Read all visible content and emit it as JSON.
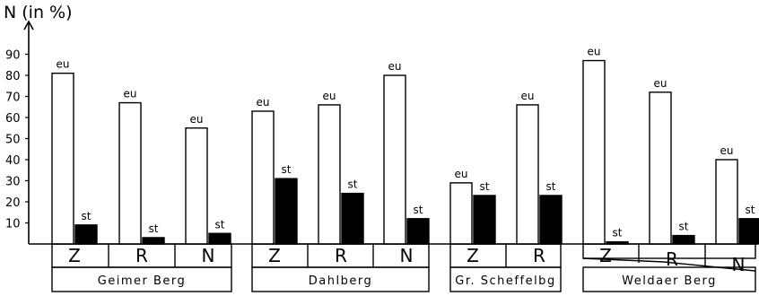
{
  "chart_data": {
    "type": "bar",
    "ylabel": "N (in %)",
    "ylim": [
      0,
      95
    ],
    "yticks": [
      10,
      20,
      30,
      40,
      50,
      60,
      70,
      80,
      90
    ],
    "series": [
      {
        "name": "eu",
        "fill": "#ffffff"
      },
      {
        "name": "st",
        "fill": "#000000"
      }
    ],
    "groups": [
      {
        "name": "Geimer Berg",
        "categories": [
          {
            "label": "Z",
            "eu": 81,
            "st": 9
          },
          {
            "label": "R",
            "eu": 67,
            "st": 3
          },
          {
            "label": "N",
            "eu": 55,
            "st": 5
          }
        ]
      },
      {
        "name": "Dahlberg",
        "categories": [
          {
            "label": "Z",
            "eu": 63,
            "st": 31
          },
          {
            "label": "R",
            "eu": 66,
            "st": 24
          },
          {
            "label": "N",
            "eu": 80,
            "st": 12
          }
        ]
      },
      {
        "name": "Gr. Scheffelbg",
        "categories": [
          {
            "label": "Z",
            "eu": 29,
            "st": 23
          },
          {
            "label": "R",
            "eu": 66,
            "st": 23
          }
        ]
      },
      {
        "name": "Weldaer Berg",
        "categories": [
          {
            "label": "Z",
            "eu": 87,
            "st": 1
          },
          {
            "label": "R",
            "eu": 72,
            "st": 4
          },
          {
            "label": "N",
            "eu": 40,
            "st": 12
          }
        ]
      }
    ]
  }
}
